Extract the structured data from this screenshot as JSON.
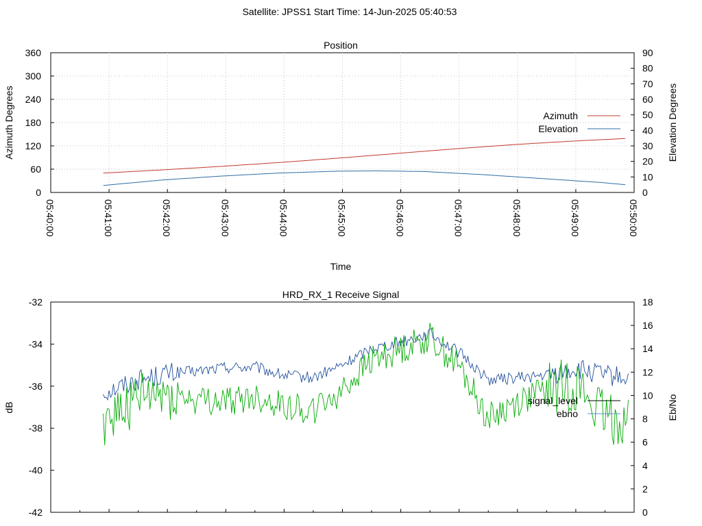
{
  "suptitle": "Satellite: JPSS1     Start Time: 14-Jun-2025 05:40:53",
  "colors": {
    "azimuth": "#c0392b",
    "elevation": "#2e6da4",
    "signal_level": "#1f4e9a",
    "ebno": "#00aa00",
    "legend_signal_level": "#000000",
    "legend_ebno": "#5b8fc9"
  },
  "chart_data": [
    {
      "type": "line",
      "title": "Position",
      "xlabel": "Time",
      "ylabel": "Azimuth Degrees",
      "y2label": "Elevation Degrees",
      "x_tick_labels": [
        "05:40:00",
        "05:41:00",
        "05:42:00",
        "05:43:00",
        "05:44:00",
        "05:45:00",
        "05:46:00",
        "05:47:00",
        "05:48:00",
        "05:49:00",
        "05:50:00"
      ],
      "xlim_minutes": [
        0,
        10
      ],
      "ylim": [
        0,
        360
      ],
      "y2lim": [
        0,
        90
      ],
      "y_ticks": [
        0,
        60,
        120,
        180,
        240,
        300,
        360
      ],
      "y2_ticks": [
        0,
        10,
        20,
        30,
        40,
        50,
        60,
        70,
        80,
        90
      ],
      "legend_position": "right",
      "series": [
        {
          "name": "Azimuth",
          "axis": "left",
          "x_minutes": [
            0.9,
            1.9,
            2.9,
            3.9,
            4.9,
            5.9,
            6.9,
            7.9,
            8.9,
            9.85
          ],
          "values": [
            50,
            58,
            67,
            77,
            88,
            100,
            112,
            123,
            132,
            139
          ]
        },
        {
          "name": "Elevation",
          "axis": "right",
          "x_minutes": [
            0.9,
            1.9,
            2.9,
            3.9,
            4.9,
            5.6,
            6.4,
            7.4,
            8.4,
            9.4,
            9.85
          ],
          "values": [
            4.5,
            8,
            10.5,
            12.5,
            13.7,
            13.9,
            13.5,
            11.5,
            9,
            6.5,
            5
          ]
        }
      ]
    },
    {
      "type": "line",
      "title": "HRD_RX_1 Receive Signal",
      "ylabel": "dB",
      "y2label": "Eb/No",
      "xlim_minutes": [
        0,
        10
      ],
      "ylim": [
        -42,
        -32
      ],
      "y2lim": [
        0,
        18
      ],
      "y_ticks": [
        -42,
        -40,
        -38,
        -36,
        -34,
        -32
      ],
      "y2_ticks": [
        0,
        2,
        4,
        6,
        8,
        10,
        12,
        14,
        16,
        18
      ],
      "legend_position": "right",
      "series": [
        {
          "name": "signal_level",
          "axis": "left",
          "x_minutes": [
            0.9,
            1.5,
            2.0,
            2.5,
            3.0,
            3.5,
            4.0,
            4.5,
            5.0,
            5.5,
            6.0,
            6.5,
            7.0,
            7.5,
            8.0,
            8.5,
            9.0,
            9.5,
            9.9
          ],
          "values": [
            -36.3,
            -35.7,
            -35.4,
            -35.3,
            -35.1,
            -35.1,
            -35.5,
            -35.6,
            -35.0,
            -34.2,
            -33.9,
            -33.5,
            -34.4,
            -35.7,
            -35.6,
            -35.5,
            -35.2,
            -35.5,
            -35.6
          ]
        },
        {
          "name": "ebno",
          "axis": "right",
          "x_minutes": [
            0.9,
            1.5,
            2.0,
            2.5,
            3.0,
            3.5,
            4.0,
            4.5,
            5.0,
            5.5,
            6.0,
            6.5,
            7.0,
            7.5,
            8.0,
            8.5,
            9.0,
            9.5,
            9.9
          ],
          "values": [
            8.0,
            9.5,
            10.2,
            9.5,
            9.5,
            9.8,
            9.2,
            8.7,
            10.5,
            13.0,
            14.0,
            15.0,
            12.5,
            8.0,
            9.5,
            10.5,
            11.0,
            8.0,
            8.0
          ]
        }
      ]
    }
  ]
}
